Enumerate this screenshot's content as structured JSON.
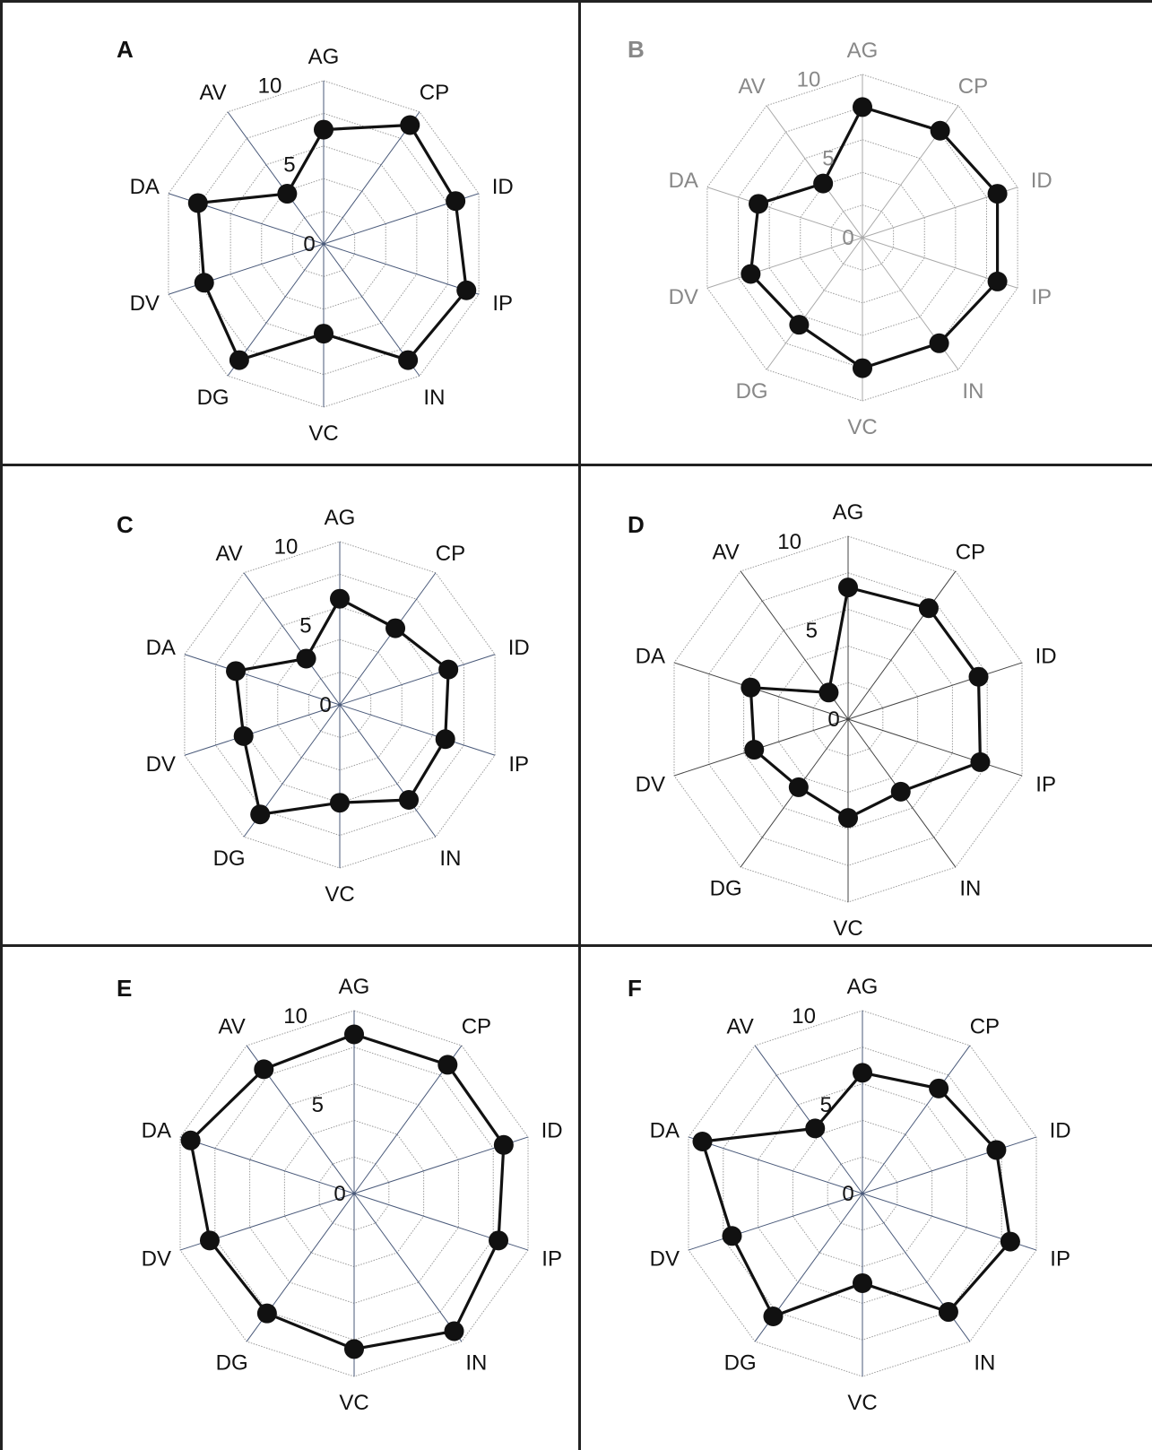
{
  "chart_data": [
    {
      "type": "radar",
      "panel_label": "A",
      "axes": [
        "AG",
        "CP",
        "ID",
        "IP",
        "IN",
        "VC",
        "DG",
        "DV",
        "DA",
        "AV"
      ],
      "values": [
        7.0,
        9.0,
        8.5,
        9.2,
        8.8,
        5.5,
        8.8,
        7.7,
        8.1,
        3.8
      ],
      "range": [
        0,
        10
      ],
      "radial_tick_labels": [
        "0",
        "5",
        "10"
      ],
      "label_color": "#111111",
      "spoke_color": "#4a5a7a"
    },
    {
      "type": "radar",
      "panel_label": "B",
      "axes": [
        "AG",
        "CP",
        "ID",
        "IP",
        "IN",
        "VC",
        "DG",
        "DV",
        "DA",
        "AV"
      ],
      "values": [
        8.0,
        8.1,
        8.7,
        8.7,
        8.0,
        8.0,
        6.6,
        7.2,
        6.7,
        4.1
      ],
      "range": [
        0,
        10
      ],
      "radial_tick_labels": [
        "0",
        "5",
        "10"
      ],
      "label_color": "#888888",
      "spoke_color": "#aaaaaa"
    },
    {
      "type": "radar",
      "panel_label": "C",
      "axes": [
        "AG",
        "CP",
        "ID",
        "IP",
        "IN",
        "VC",
        "DG",
        "DV",
        "DA",
        "AV"
      ],
      "values": [
        6.5,
        5.8,
        7.0,
        6.8,
        7.2,
        6.0,
        8.3,
        6.2,
        6.7,
        3.5
      ],
      "range": [
        0,
        10
      ],
      "radial_tick_labels": [
        "0",
        "5",
        "10"
      ],
      "label_color": "#111111",
      "spoke_color": "#4a5a7a"
    },
    {
      "type": "radar",
      "panel_label": "D",
      "axes": [
        "AG",
        "CP",
        "ID",
        "IP",
        "IN",
        "VC",
        "DG",
        "DV",
        "DA",
        "AV"
      ],
      "values": [
        7.2,
        7.5,
        7.5,
        7.6,
        4.9,
        5.4,
        4.6,
        5.4,
        5.6,
        1.8
      ],
      "range": [
        0,
        10
      ],
      "radial_tick_labels": [
        "0",
        "5",
        "10"
      ],
      "label_color": "#111111",
      "spoke_color": "#444444"
    },
    {
      "type": "radar",
      "panel_label": "E",
      "axes": [
        "AG",
        "CP",
        "ID",
        "IP",
        "IN",
        "VC",
        "DG",
        "DV",
        "DA",
        "AV"
      ],
      "values": [
        8.7,
        8.7,
        8.6,
        8.3,
        9.3,
        8.5,
        8.1,
        8.3,
        9.4,
        8.4
      ],
      "range": [
        0,
        10
      ],
      "radial_tick_labels": [
        "0",
        "5",
        "10"
      ],
      "label_color": "#111111",
      "spoke_color": "#4a5a7a"
    },
    {
      "type": "radar",
      "panel_label": "F",
      "axes": [
        "AG",
        "CP",
        "ID",
        "IP",
        "IN",
        "VC",
        "DG",
        "DV",
        "DA",
        "AV"
      ],
      "values": [
        6.6,
        7.1,
        7.7,
        8.5,
        8.0,
        4.9,
        8.3,
        7.5,
        9.2,
        4.4
      ],
      "range": [
        0,
        10
      ],
      "radial_tick_labels": [
        "0",
        "5",
        "10"
      ],
      "label_color": "#111111",
      "spoke_color": "#4a5a7a"
    }
  ]
}
